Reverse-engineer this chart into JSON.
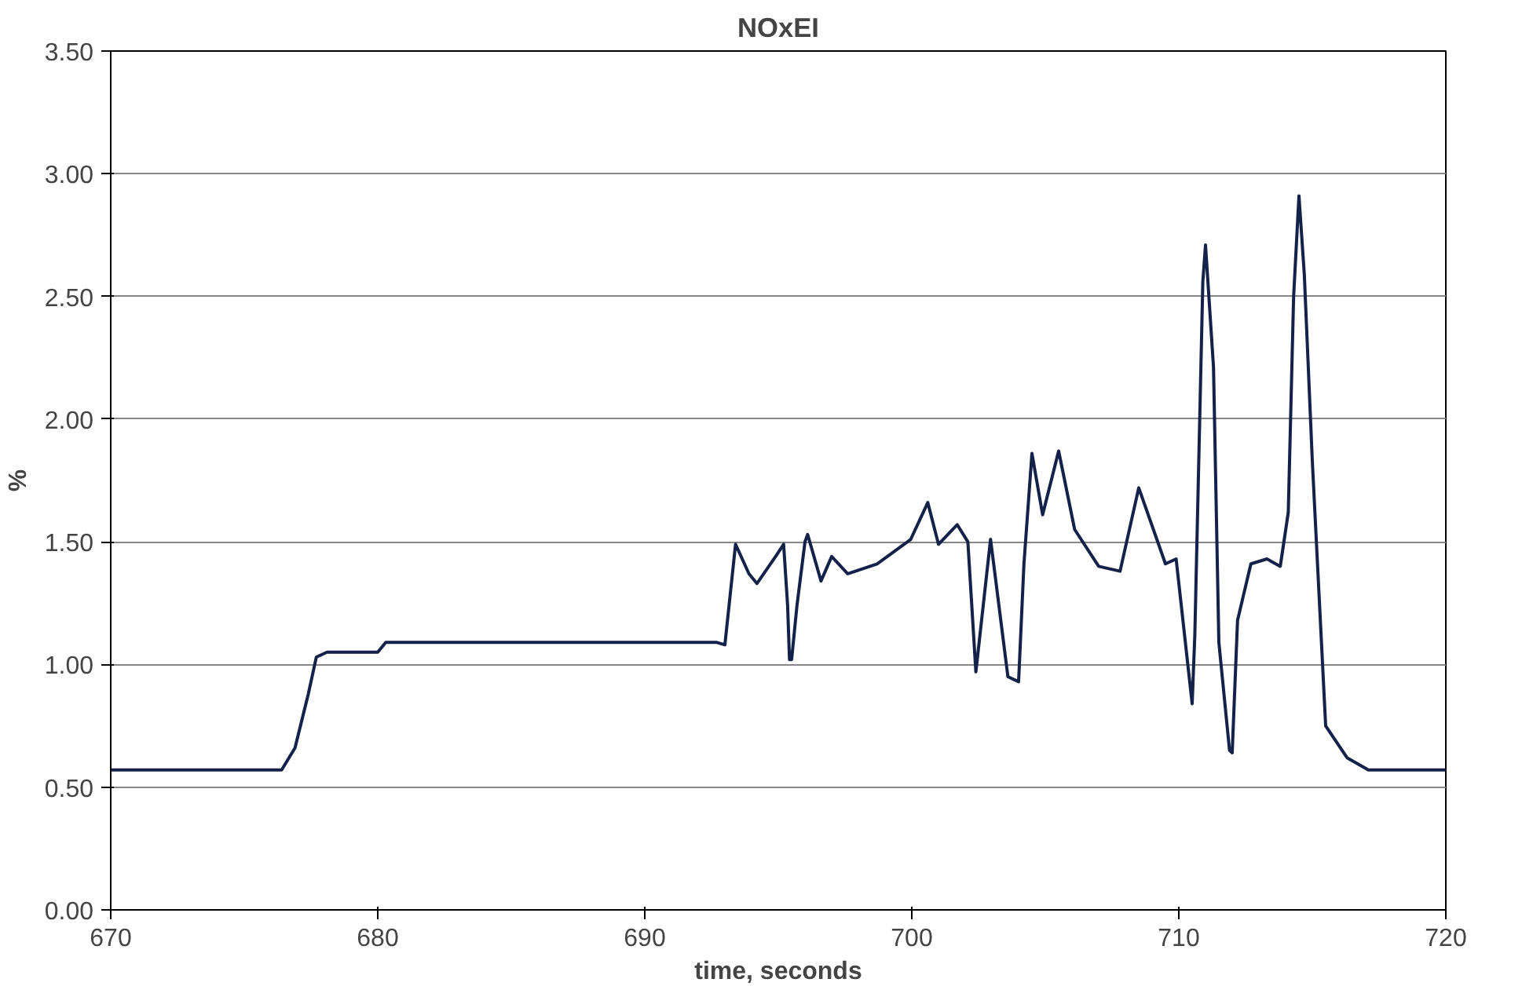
{
  "chart_data": {
    "type": "line",
    "title": "NOxEI",
    "xlabel": "time, seconds",
    "ylabel": "%",
    "xlim": [
      670,
      720
    ],
    "xticks": [
      670,
      680,
      690,
      700,
      710,
      720
    ],
    "ylim": [
      0,
      3.5
    ],
    "yticks": [
      {
        "value": 0,
        "label": "0.00"
      },
      {
        "value": 0.5,
        "label": "0.50"
      },
      {
        "value": 1,
        "label": "1.00"
      },
      {
        "value": 1.5,
        "label": "1.50"
      },
      {
        "value": 2,
        "label": "2.00"
      },
      {
        "value": 2.5,
        "label": "2.50"
      },
      {
        "value": 3,
        "label": "3.00"
      },
      {
        "value": 3.5,
        "label": "3.50"
      }
    ],
    "grid": "y",
    "marker": "none",
    "line_style": "solid",
    "series": [
      {
        "color": "#14224a",
        "x": [
          670,
          676.4,
          676.9,
          677.4,
          677.7,
          678.1,
          680.0,
          680.3,
          692.7,
          693.0,
          693.4,
          693.9,
          694.2,
          694.9,
          695.2,
          695.35,
          695.42,
          695.5,
          695.7,
          696.0,
          696.1,
          696.6,
          697.0,
          697.6,
          698.7,
          699.96,
          700.6,
          701.0,
          701.7,
          702.1,
          702.4,
          702.95,
          703.6,
          704.0,
          704.2,
          704.5,
          704.9,
          705.5,
          706.1,
          707.0,
          707.8,
          708.5,
          709.5,
          709.9,
          710.5,
          710.6,
          710.9,
          711.0,
          711.3,
          711.5,
          711.9,
          712.0,
          712.2,
          712.7,
          713.3,
          713.8,
          714.1,
          714.3,
          714.5,
          714.7,
          715.0,
          715.5,
          716.3,
          717.1,
          720
        ],
        "values": [
          0.57,
          0.57,
          0.66,
          0.88,
          1.03,
          1.05,
          1.05,
          1.09,
          1.09,
          1.08,
          1.49,
          1.37,
          1.33,
          1.44,
          1.49,
          1.24,
          1.02,
          1.02,
          1.24,
          1.5,
          1.53,
          1.34,
          1.44,
          1.37,
          1.41,
          1.51,
          1.66,
          1.49,
          1.57,
          1.5,
          0.97,
          1.51,
          0.95,
          0.93,
          1.41,
          1.86,
          1.61,
          1.87,
          1.55,
          1.4,
          1.38,
          1.72,
          1.41,
          1.43,
          0.84,
          1.12,
          2.56,
          2.71,
          2.21,
          1.09,
          0.65,
          0.64,
          1.18,
          1.41,
          1.43,
          1.4,
          1.62,
          2.5,
          2.91,
          2.59,
          1.83,
          0.75,
          0.62,
          0.57,
          0.57
        ]
      }
    ]
  }
}
